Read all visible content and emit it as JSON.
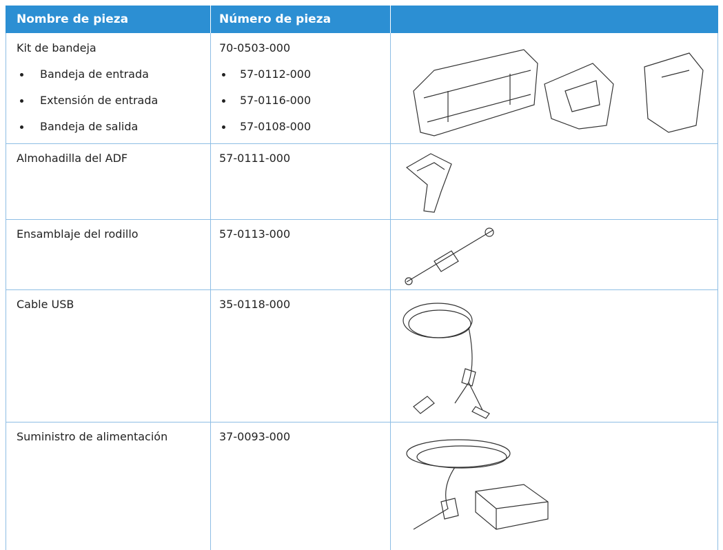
{
  "table": {
    "headers": [
      "Nombre de pieza",
      "Número de pieza"
    ],
    "rows": [
      {
        "name": "Kit de bandeja",
        "number": "70-0503-000",
        "items": [
          {
            "name": "Bandeja de entrada",
            "number": "57-0112-000"
          },
          {
            "name": "Extensión de entrada",
            "number": "57-0116-000"
          },
          {
            "name": "Bandeja de salida",
            "number": "57-0108-000"
          }
        ]
      },
      {
        "name": "Almohadilla del ADF",
        "number": "57-0111-000"
      },
      {
        "name": "Ensamblaje del rodillo",
        "number": "57-0113-000"
      },
      {
        "name": "Cable USB",
        "number": "35-0118-000"
      },
      {
        "name": "Suministro de alimentación",
        "number": "37-0093-000"
      }
    ]
  }
}
